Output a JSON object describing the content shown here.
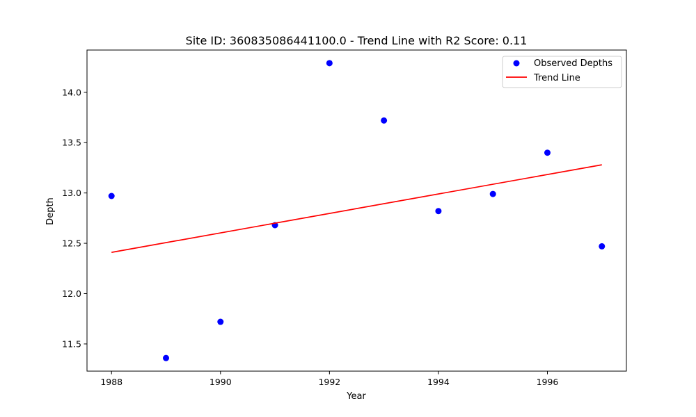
{
  "chart_data": {
    "type": "scatter",
    "title": "Site ID: 360835086441100.0 - Trend Line with R2 Score: 0.11",
    "xlabel": "Year",
    "ylabel": "Depth",
    "xlim": [
      1987.55,
      1997.45
    ],
    "ylim": [
      11.23,
      14.42
    ],
    "xticks": [
      1988,
      1990,
      1992,
      1994,
      1996
    ],
    "xtick_labels": [
      "1988",
      "1990",
      "1992",
      "1994",
      "1996"
    ],
    "yticks": [
      11.5,
      12.0,
      12.5,
      13.0,
      13.5,
      14.0
    ],
    "ytick_labels": [
      "11.5",
      "12.0",
      "12.5",
      "13.0",
      "13.5",
      "14.0"
    ],
    "grid": false,
    "legend_position": "top-right",
    "series": [
      {
        "name": "Observed Depths",
        "kind": "scatter",
        "color": "#0000ff",
        "x": [
          1988,
          1989,
          1990,
          1991,
          1992,
          1993,
          1994,
          1995,
          1996,
          1997
        ],
        "y": [
          12.97,
          11.36,
          11.72,
          12.68,
          14.29,
          13.72,
          12.82,
          12.99,
          13.4,
          12.47
        ]
      },
      {
        "name": "Trend Line",
        "kind": "line",
        "color": "#ff0000",
        "x": [
          1988,
          1997
        ],
        "y": [
          12.41,
          13.28
        ]
      }
    ]
  }
}
